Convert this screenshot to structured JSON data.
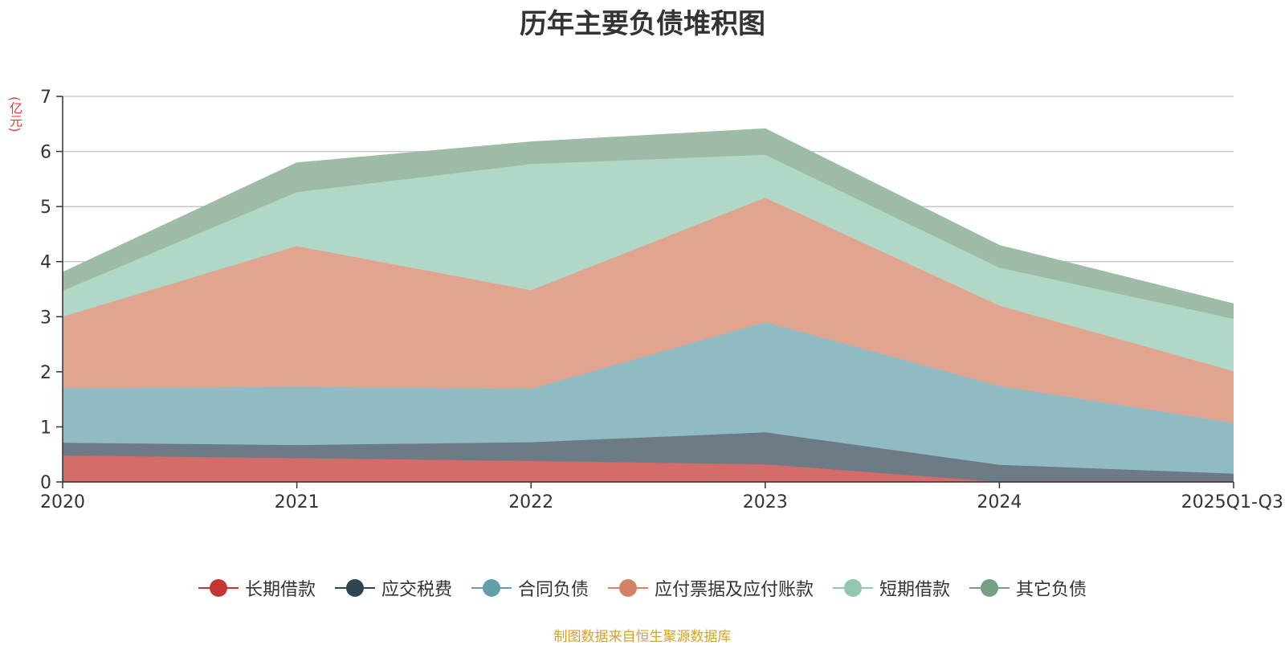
{
  "chart_data": {
    "type": "area",
    "stacked": true,
    "title": "历年主要负债堆积图",
    "ylabel": "(亿元)",
    "xlabel": "",
    "categories": [
      "2020",
      "2021",
      "2022",
      "2023",
      "2024",
      "2025Q1-Q3"
    ],
    "ylim": [
      0,
      7
    ],
    "yticks": [
      0,
      1,
      2,
      3,
      4,
      5,
      6,
      7
    ],
    "grid": true,
    "legend_position": "bottom",
    "series": [
      {
        "name": "长期借款",
        "color": "#c23531",
        "fill": "#d46c69",
        "values": [
          0.48,
          0.43,
          0.38,
          0.32,
          0.0,
          0.0
        ]
      },
      {
        "name": "应交税费",
        "color": "#2f4554",
        "fill": "#6d7b86",
        "values": [
          0.23,
          0.24,
          0.34,
          0.58,
          0.31,
          0.15
        ]
      },
      {
        "name": "合同负债",
        "color": "#61a0a8",
        "fill": "#90bbc2",
        "values": [
          0.99,
          1.06,
          0.97,
          2.0,
          1.43,
          0.92
        ]
      },
      {
        "name": "应付票据及应付账款",
        "color": "#d48265",
        "fill": "#e0a590",
        "values": [
          1.3,
          2.55,
          1.79,
          2.26,
          1.46,
          0.94
        ]
      },
      {
        "name": "短期借款",
        "color": "#91c7ae",
        "fill": "#b1d8c6",
        "values": [
          0.47,
          0.98,
          2.29,
          0.78,
          0.69,
          0.95
        ]
      },
      {
        "name": "其它负债",
        "color": "#749f83",
        "fill": "#9dbba7",
        "values": [
          0.33,
          0.53,
          0.4,
          0.47,
          0.4,
          0.27
        ]
      }
    ]
  },
  "source_note": "制图数据来自恒生聚源数据库"
}
